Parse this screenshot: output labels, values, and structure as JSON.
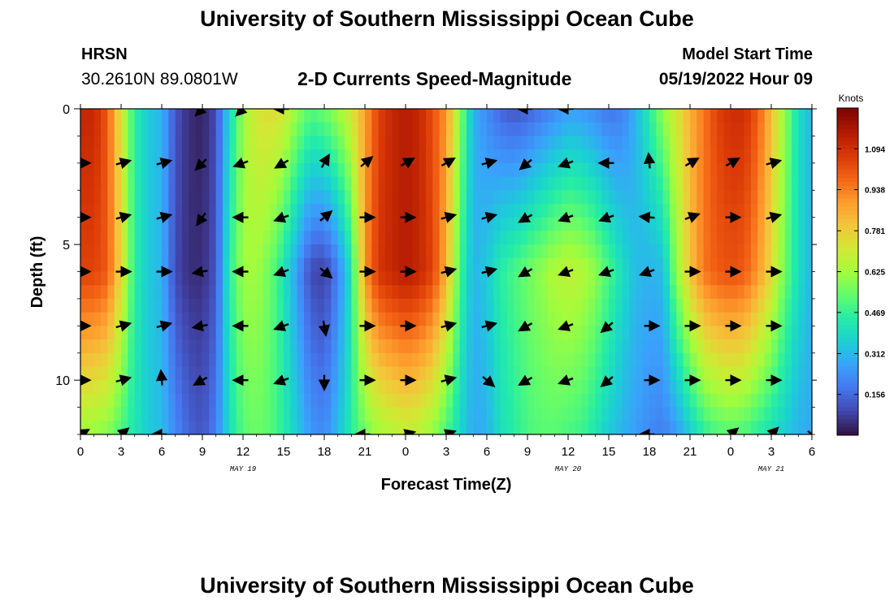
{
  "header": {
    "title": "University of Southern Mississippi Ocean Cube",
    "station": "HRSN",
    "coords": "30.2610N  89.0801W",
    "chart_title": "2-D Currents Speed-Magnitude",
    "start_label": "Model Start Time",
    "start_value": "05/19/2022 Hour 09"
  },
  "footer": {
    "title": "University of Southern Mississippi Ocean Cube"
  },
  "colors": {
    "colormap": [
      "#30123b",
      "#4145ab",
      "#4675ed",
      "#39a2fc",
      "#1bcfd4",
      "#24eca6",
      "#61fc6c",
      "#a4fc3b",
      "#d1e834",
      "#f3c63a",
      "#fe9b2d",
      "#f36315",
      "#d93806",
      "#b11901",
      "#7a0402"
    ]
  },
  "chart_data": {
    "type": "heatmap",
    "title": "2-D Currents Speed-Magnitude",
    "xlabel": "Forecast Time(Z)",
    "ylabel": "Depth (ft)",
    "x_hours": [
      0,
      54
    ],
    "ylim": [
      0,
      12
    ],
    "x_ticks": [
      {
        "h": 0,
        "label": "0"
      },
      {
        "h": 3,
        "label": "3"
      },
      {
        "h": 6,
        "label": "6"
      },
      {
        "h": 9,
        "label": "9"
      },
      {
        "h": 12,
        "label": "12"
      },
      {
        "h": 15,
        "label": "15"
      },
      {
        "h": 18,
        "label": "18"
      },
      {
        "h": 21,
        "label": "21"
      },
      {
        "h": 24,
        "label": "0"
      },
      {
        "h": 27,
        "label": "3"
      },
      {
        "h": 30,
        "label": "6"
      },
      {
        "h": 33,
        "label": "9"
      },
      {
        "h": 36,
        "label": "12"
      },
      {
        "h": 39,
        "label": "15"
      },
      {
        "h": 42,
        "label": "18"
      },
      {
        "h": 45,
        "label": "21"
      },
      {
        "h": 48,
        "label": "0"
      },
      {
        "h": 51,
        "label": "3"
      },
      {
        "h": 54,
        "label": "6"
      }
    ],
    "date_labels": [
      {
        "h": 12,
        "label": "MAY 19"
      },
      {
        "h": 36,
        "label": "MAY 20"
      },
      {
        "h": 51,
        "label": "MAY 21"
      }
    ],
    "y_ticks": [
      {
        "v": 0,
        "label": "0"
      },
      {
        "v": 5,
        "label": "5"
      },
      {
        "v": 10,
        "label": "10"
      }
    ],
    "colorbar": {
      "label": "Knots",
      "range": [
        0,
        1.25
      ],
      "ticks": [
        {
          "v": 0.156,
          "label": "0.156"
        },
        {
          "v": 0.312,
          "label": "0.312"
        },
        {
          "v": 0.469,
          "label": "0.469"
        },
        {
          "v": 0.625,
          "label": "0.625"
        },
        {
          "v": 0.781,
          "label": "0.781"
        },
        {
          "v": 0.938,
          "label": "0.938"
        },
        {
          "v": 1.094,
          "label": "1.094"
        }
      ]
    },
    "speed_profile_surface": [
      [
        0,
        1.12
      ],
      [
        1,
        1.12
      ],
      [
        2,
        1.0
      ],
      [
        3,
        0.72
      ],
      [
        4,
        0.45
      ],
      [
        5,
        0.35
      ],
      [
        6,
        0.3
      ],
      [
        7,
        0.12
      ],
      [
        8,
        0.05
      ],
      [
        9,
        0.03
      ],
      [
        10,
        0.1
      ],
      [
        11,
        0.38
      ],
      [
        12,
        0.62
      ],
      [
        13,
        0.72
      ],
      [
        14,
        0.75
      ],
      [
        15,
        0.72
      ],
      [
        16,
        0.6
      ],
      [
        17,
        0.52
      ],
      [
        18,
        0.55
      ],
      [
        19,
        0.62
      ],
      [
        20,
        0.72
      ],
      [
        21,
        0.88
      ],
      [
        22,
        1.05
      ],
      [
        23,
        1.12
      ],
      [
        24,
        1.15
      ],
      [
        25,
        1.12
      ],
      [
        26,
        1.02
      ],
      [
        27,
        0.9
      ],
      [
        28,
        0.6
      ],
      [
        29,
        0.3
      ],
      [
        30,
        0.22
      ],
      [
        31,
        0.15
      ],
      [
        32,
        0.12
      ],
      [
        33,
        0.14
      ],
      [
        34,
        0.18
      ],
      [
        35,
        0.22
      ],
      [
        36,
        0.26
      ],
      [
        37,
        0.25
      ],
      [
        38,
        0.22
      ],
      [
        39,
        0.18
      ],
      [
        40,
        0.2
      ],
      [
        41,
        0.3
      ],
      [
        42,
        0.45
      ],
      [
        43,
        0.6
      ],
      [
        44,
        0.72
      ],
      [
        45,
        0.85
      ],
      [
        46,
        0.95
      ],
      [
        47,
        1.05
      ],
      [
        48,
        1.1
      ],
      [
        49,
        1.1
      ],
      [
        50,
        1.0
      ],
      [
        51,
        0.82
      ],
      [
        52,
        0.6
      ],
      [
        53,
        0.4
      ],
      [
        54,
        0.3
      ]
    ],
    "speed_profile_mid": [
      [
        0,
        1.05
      ],
      [
        1,
        1.05
      ],
      [
        2,
        1.0
      ],
      [
        3,
        0.75
      ],
      [
        4,
        0.45
      ],
      [
        5,
        0.35
      ],
      [
        6,
        0.3
      ],
      [
        7,
        0.1
      ],
      [
        8,
        0.05
      ],
      [
        9,
        0.05
      ],
      [
        10,
        0.12
      ],
      [
        11,
        0.45
      ],
      [
        12,
        0.62
      ],
      [
        13,
        0.62
      ],
      [
        14,
        0.55
      ],
      [
        15,
        0.42
      ],
      [
        16,
        0.25
      ],
      [
        17,
        0.1
      ],
      [
        18,
        0.08
      ],
      [
        19,
        0.2
      ],
      [
        20,
        0.42
      ],
      [
        21,
        0.9
      ],
      [
        22,
        1.08
      ],
      [
        23,
        1.12
      ],
      [
        24,
        1.15
      ],
      [
        25,
        1.12
      ],
      [
        26,
        1.05
      ],
      [
        27,
        0.85
      ],
      [
        28,
        0.5
      ],
      [
        29,
        0.3
      ],
      [
        30,
        0.35
      ],
      [
        31,
        0.45
      ],
      [
        32,
        0.5
      ],
      [
        33,
        0.55
      ],
      [
        34,
        0.6
      ],
      [
        35,
        0.65
      ],
      [
        36,
        0.68
      ],
      [
        37,
        0.66
      ],
      [
        38,
        0.6
      ],
      [
        39,
        0.5
      ],
      [
        40,
        0.4
      ],
      [
        41,
        0.32
      ],
      [
        42,
        0.3
      ],
      [
        43,
        0.32
      ],
      [
        44,
        0.6
      ],
      [
        45,
        0.8
      ],
      [
        46,
        0.95
      ],
      [
        47,
        1.0
      ],
      [
        48,
        1.02
      ],
      [
        49,
        1.0
      ],
      [
        50,
        0.9
      ],
      [
        51,
        0.75
      ],
      [
        52,
        0.55
      ],
      [
        53,
        0.4
      ],
      [
        54,
        0.3
      ]
    ],
    "speed_profile_bottom": [
      [
        0,
        0.62
      ],
      [
        1,
        0.6
      ],
      [
        2,
        0.58
      ],
      [
        3,
        0.5
      ],
      [
        4,
        0.42
      ],
      [
        5,
        0.35
      ],
      [
        6,
        0.32
      ],
      [
        7,
        0.22
      ],
      [
        8,
        0.15
      ],
      [
        9,
        0.12
      ],
      [
        10,
        0.2
      ],
      [
        11,
        0.4
      ],
      [
        12,
        0.52
      ],
      [
        13,
        0.55
      ],
      [
        14,
        0.52
      ],
      [
        15,
        0.45
      ],
      [
        16,
        0.35
      ],
      [
        17,
        0.25
      ],
      [
        18,
        0.22
      ],
      [
        19,
        0.32
      ],
      [
        20,
        0.45
      ],
      [
        21,
        0.55
      ],
      [
        22,
        0.62
      ],
      [
        23,
        0.65
      ],
      [
        24,
        0.68
      ],
      [
        25,
        0.66
      ],
      [
        26,
        0.6
      ],
      [
        27,
        0.5
      ],
      [
        28,
        0.38
      ],
      [
        29,
        0.28
      ],
      [
        30,
        0.3
      ],
      [
        31,
        0.4
      ],
      [
        32,
        0.45
      ],
      [
        33,
        0.5
      ],
      [
        34,
        0.52
      ],
      [
        35,
        0.52
      ],
      [
        36,
        0.5
      ],
      [
        37,
        0.48
      ],
      [
        38,
        0.42
      ],
      [
        39,
        0.35
      ],
      [
        40,
        0.3
      ],
      [
        41,
        0.26
      ],
      [
        42,
        0.22
      ],
      [
        43,
        0.2
      ],
      [
        44,
        0.25
      ],
      [
        45,
        0.35
      ],
      [
        46,
        0.45
      ],
      [
        47,
        0.5
      ],
      [
        48,
        0.52
      ],
      [
        49,
        0.5
      ],
      [
        50,
        0.45
      ],
      [
        51,
        0.4
      ],
      [
        52,
        0.35
      ],
      [
        53,
        0.3
      ],
      [
        54,
        0.28
      ]
    ],
    "arrow_depths": [
      0,
      2,
      4,
      6,
      8,
      10,
      12
    ],
    "arrow_hours": [
      0,
      3,
      6,
      9,
      12,
      15,
      18,
      21,
      24,
      27,
      30,
      33,
      36,
      39,
      42,
      45,
      48,
      51,
      54
    ],
    "arrow_directions_deg": [
      [
        null,
        null,
        null,
        225,
        225,
        180,
        null,
        null,
        null,
        null,
        null,
        180,
        180,
        null,
        null,
        null,
        null,
        null,
        null
      ],
      [
        0,
        15,
        15,
        225,
        200,
        210,
        60,
        40,
        30,
        30,
        15,
        220,
        200,
        180,
        95,
        30,
        30,
        15,
        null
      ],
      [
        0,
        15,
        15,
        235,
        180,
        200,
        40,
        0,
        0,
        15,
        15,
        210,
        200,
        200,
        175,
        20,
        0,
        15,
        null
      ],
      [
        0,
        0,
        0,
        190,
        180,
        200,
        320,
        0,
        0,
        15,
        15,
        210,
        200,
        200,
        200,
        0,
        0,
        0,
        null
      ],
      [
        0,
        15,
        15,
        190,
        180,
        200,
        280,
        0,
        0,
        15,
        15,
        210,
        200,
        220,
        0,
        0,
        0,
        0,
        null
      ],
      [
        0,
        15,
        95,
        210,
        180,
        200,
        270,
        0,
        0,
        15,
        320,
        210,
        200,
        220,
        0,
        0,
        0,
        0,
        null
      ],
      [
        30,
        40,
        180,
        null,
        null,
        null,
        null,
        180,
        15,
        20,
        null,
        null,
        null,
        null,
        180,
        null,
        40,
        45,
        320
      ]
    ]
  }
}
